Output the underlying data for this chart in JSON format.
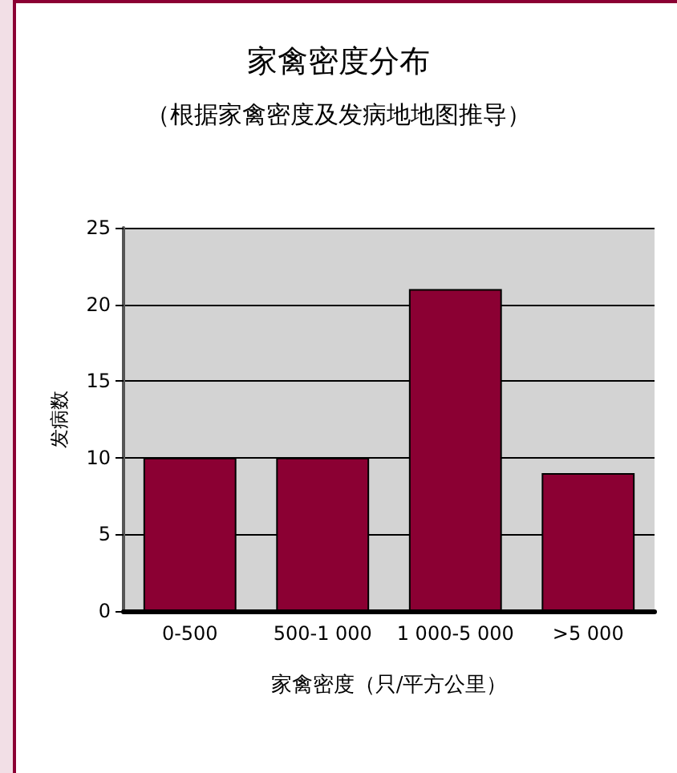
{
  "chart_data": {
    "type": "bar",
    "title": "家禽密度分布",
    "subtitle": "（根据家禽密度及发病地地图推导）",
    "xlabel": "家禽密度（只/平方公里）",
    "ylabel": "发病数",
    "categories": [
      "0-500",
      "500-1 000",
      "1 000-5 000",
      ">5 000"
    ],
    "values": [
      10,
      10,
      21,
      9
    ],
    "color": "#8b0033",
    "ylim": [
      0,
      25
    ],
    "yticks": [
      0,
      5,
      10,
      15,
      20,
      25
    ],
    "grid": "y"
  }
}
